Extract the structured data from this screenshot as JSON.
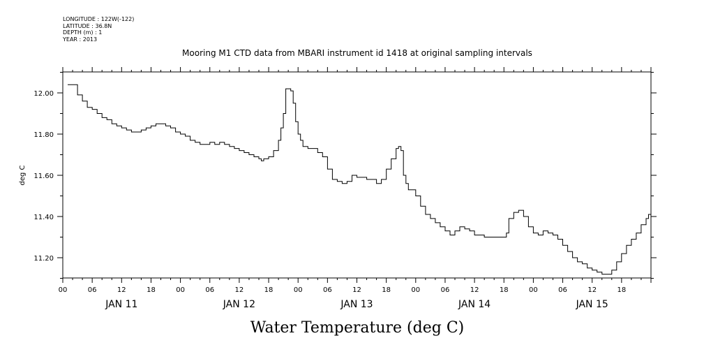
{
  "header": {
    "lines": [
      "LONGITUDE : 122W(-122)",
      "LATITUDE : 36.8N",
      "DEPTH (m) : 1",
      "YEAR : 2013"
    ]
  },
  "chart_data": {
    "type": "line",
    "title": "Mooring M1 CTD data from MBARI instrument id 1418 at original sampling intervals",
    "xlabel": "Water Temperature (deg C)",
    "ylabel": "deg C",
    "xlim": [
      0,
      120
    ],
    "ylim": [
      11.1,
      12.1
    ],
    "y_ticks": [
      11.2,
      11.4,
      11.6,
      11.8,
      12.0
    ],
    "y_tick_labels": [
      "11.20",
      "11.40",
      "11.60",
      "11.80",
      "12.00"
    ],
    "x_ticks": [
      0,
      6,
      12,
      18,
      24,
      30,
      36,
      42,
      48,
      54,
      60,
      66,
      72,
      78,
      84,
      90,
      96,
      102,
      108,
      114
    ],
    "x_tick_labels": [
      "00",
      "06",
      "12",
      "18",
      "00",
      "06",
      "12",
      "18",
      "00",
      "06",
      "12",
      "18",
      "00",
      "06",
      "12",
      "18",
      "00",
      "06",
      "12",
      "18"
    ],
    "day_labels": [
      {
        "x": 12,
        "label": "JAN 11"
      },
      {
        "x": 36,
        "label": "JAN 12"
      },
      {
        "x": 60,
        "label": "JAN 13"
      },
      {
        "x": 84,
        "label": "JAN 14"
      },
      {
        "x": 108,
        "label": "JAN 15"
      }
    ],
    "grid": false,
    "series": [
      {
        "values": [
          [
            1,
            12.04
          ],
          [
            2,
            12.04
          ],
          [
            3,
            11.99
          ],
          [
            4,
            11.96
          ],
          [
            5,
            11.93
          ],
          [
            6,
            11.92
          ],
          [
            7,
            11.9
          ],
          [
            8,
            11.88
          ],
          [
            9,
            11.87
          ],
          [
            10,
            11.85
          ],
          [
            11,
            11.84
          ],
          [
            12,
            11.83
          ],
          [
            13,
            11.82
          ],
          [
            14,
            11.81
          ],
          [
            15,
            11.81
          ],
          [
            16,
            11.82
          ],
          [
            17,
            11.83
          ],
          [
            18,
            11.84
          ],
          [
            19,
            11.85
          ],
          [
            20,
            11.85
          ],
          [
            21,
            11.84
          ],
          [
            22,
            11.83
          ],
          [
            23,
            11.81
          ],
          [
            24,
            11.8
          ],
          [
            25,
            11.79
          ],
          [
            26,
            11.77
          ],
          [
            27,
            11.76
          ],
          [
            28,
            11.75
          ],
          [
            29,
            11.75
          ],
          [
            30,
            11.76
          ],
          [
            31,
            11.75
          ],
          [
            32,
            11.76
          ],
          [
            33,
            11.75
          ],
          [
            34,
            11.74
          ],
          [
            35,
            11.73
          ],
          [
            36,
            11.72
          ],
          [
            37,
            11.71
          ],
          [
            38,
            11.7
          ],
          [
            39,
            11.69
          ],
          [
            40,
            11.68
          ],
          [
            40.5,
            11.67
          ],
          [
            41,
            11.68
          ],
          [
            42,
            11.69
          ],
          [
            43,
            11.72
          ],
          [
            44,
            11.77
          ],
          [
            44.5,
            11.83
          ],
          [
            45,
            11.9
          ],
          [
            45.5,
            12.02
          ],
          [
            46,
            12.02
          ],
          [
            46.5,
            12.01
          ],
          [
            47,
            11.95
          ],
          [
            47.5,
            11.86
          ],
          [
            48,
            11.8
          ],
          [
            48.5,
            11.77
          ],
          [
            49,
            11.74
          ],
          [
            50,
            11.73
          ],
          [
            51,
            11.73
          ],
          [
            52,
            11.71
          ],
          [
            53,
            11.69
          ],
          [
            54,
            11.63
          ],
          [
            55,
            11.58
          ],
          [
            56,
            11.57
          ],
          [
            57,
            11.56
          ],
          [
            58,
            11.57
          ],
          [
            59,
            11.6
          ],
          [
            60,
            11.59
          ],
          [
            61,
            11.59
          ],
          [
            62,
            11.58
          ],
          [
            63,
            11.58
          ],
          [
            64,
            11.56
          ],
          [
            65,
            11.58
          ],
          [
            66,
            11.63
          ],
          [
            67,
            11.68
          ],
          [
            68,
            11.73
          ],
          [
            68.5,
            11.74
          ],
          [
            69,
            11.72
          ],
          [
            69.5,
            11.6
          ],
          [
            70,
            11.56
          ],
          [
            70.5,
            11.53
          ],
          [
            71,
            11.53
          ],
          [
            72,
            11.5
          ],
          [
            73,
            11.45
          ],
          [
            74,
            11.41
          ],
          [
            75,
            11.39
          ],
          [
            76,
            11.37
          ],
          [
            77,
            11.35
          ],
          [
            78,
            11.33
          ],
          [
            79,
            11.31
          ],
          [
            80,
            11.33
          ],
          [
            81,
            11.35
          ],
          [
            82,
            11.34
          ],
          [
            83,
            11.33
          ],
          [
            84,
            11.31
          ],
          [
            85,
            11.31
          ],
          [
            86,
            11.3
          ],
          [
            87,
            11.3
          ],
          [
            88,
            11.3
          ],
          [
            89,
            11.3
          ],
          [
            90,
            11.3
          ],
          [
            90.5,
            11.32
          ],
          [
            91,
            11.39
          ],
          [
            92,
            11.42
          ],
          [
            93,
            11.43
          ],
          [
            94,
            11.4
          ],
          [
            95,
            11.35
          ],
          [
            96,
            11.32
          ],
          [
            97,
            11.31
          ],
          [
            98,
            11.33
          ],
          [
            99,
            11.32
          ],
          [
            100,
            11.31
          ],
          [
            101,
            11.29
          ],
          [
            102,
            11.26
          ],
          [
            103,
            11.23
          ],
          [
            104,
            11.2
          ],
          [
            105,
            11.18
          ],
          [
            106,
            11.17
          ],
          [
            107,
            11.15
          ],
          [
            108,
            11.14
          ],
          [
            109,
            11.13
          ],
          [
            110,
            11.12
          ],
          [
            111,
            11.12
          ],
          [
            112,
            11.14
          ],
          [
            113,
            11.18
          ],
          [
            114,
            11.22
          ],
          [
            115,
            11.26
          ],
          [
            116,
            11.29
          ],
          [
            117,
            11.32
          ],
          [
            118,
            11.36
          ],
          [
            119,
            11.39
          ],
          [
            119.5,
            11.41
          ],
          [
            120,
            11.43
          ]
        ]
      }
    ]
  }
}
